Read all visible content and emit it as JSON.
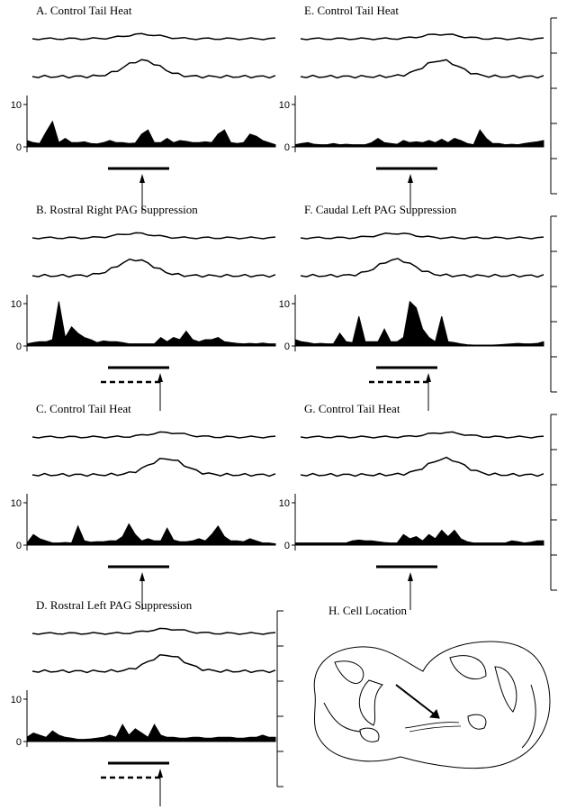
{
  "chart_data": [
    {
      "type": "area",
      "title": "A. Control Tail Heat",
      "color": "#000000",
      "ylim": [
        0,
        11.7
      ],
      "yticks": [
        0,
        10
      ],
      "values": [
        1.5,
        1,
        0.8,
        3.5,
        6,
        1,
        2,
        1,
        1,
        1.2,
        0.8,
        0.7,
        1,
        1.5,
        1,
        1,
        0.8,
        0.9,
        3,
        4,
        1,
        1,
        2,
        1,
        1.5,
        1.3,
        1,
        1,
        1.2,
        1,
        3,
        4,
        1,
        0.8,
        1,
        3,
        2.5,
        1.5,
        1,
        0.5
      ]
    },
    {
      "type": "area",
      "title": "B. Rostral Right PAG Suppression",
      "color": "#000000",
      "ylim": [
        0,
        11.7
      ],
      "yticks": [
        0,
        10
      ],
      "values": [
        0.5,
        0.8,
        1,
        1,
        1.5,
        10.5,
        2,
        4.5,
        3,
        2,
        1.5,
        0.8,
        1.2,
        1,
        1,
        0.8,
        0.5,
        0.5,
        0.5,
        0.5,
        0.5,
        2,
        1,
        2,
        1.5,
        3.5,
        1.5,
        1,
        1.5,
        1.5,
        2,
        1,
        0.8,
        0.6,
        0.5,
        0.6,
        0.5,
        0.7,
        0.5,
        0.5
      ]
    },
    {
      "type": "area",
      "title": "C. Control Tail Heat",
      "color": "#000000",
      "ylim": [
        0,
        11.7
      ],
      "yticks": [
        0,
        10
      ],
      "values": [
        0.5,
        2.5,
        1.5,
        1,
        0.5,
        0.5,
        0.6,
        0.5,
        4.5,
        1,
        0.7,
        0.8,
        0.8,
        1,
        1,
        2,
        5,
        2.5,
        1,
        1.5,
        1,
        1,
        4,
        1.2,
        0.8,
        0.8,
        1,
        1.5,
        1,
        2.5,
        4.5,
        2,
        1,
        1,
        0.8,
        1.5,
        1,
        0.5,
        0.5,
        0.3
      ]
    },
    {
      "type": "area",
      "title": "D. Rostral Left PAG Suppression",
      "color": "#000000",
      "ylim": [
        0,
        11.7
      ],
      "yticks": [
        0,
        10
      ],
      "values": [
        1,
        2,
        1.5,
        1,
        2.5,
        1.5,
        1,
        0.8,
        0.5,
        0.5,
        0.6,
        0.8,
        1,
        1.5,
        1,
        4,
        1.5,
        3,
        2,
        1,
        4,
        1.5,
        1,
        1,
        0.8,
        0.8,
        1,
        1,
        0.8,
        0.8,
        1,
        1,
        1,
        0.8,
        0.8,
        1,
        1,
        1.5,
        1,
        1
      ]
    },
    {
      "type": "area",
      "title": "E. Control Tail Heat",
      "color": "#000000",
      "ylim": [
        0,
        11.7
      ],
      "yticks": [
        0,
        10
      ],
      "values": [
        0.5,
        0.8,
        1,
        0.6,
        0.5,
        0.5,
        0.8,
        0.5,
        0.6,
        0.5,
        0.5,
        0.5,
        1,
        2,
        1,
        0.8,
        0.6,
        1.5,
        1,
        1.2,
        1,
        1.5,
        1,
        1.8,
        1,
        2,
        1.5,
        0.8,
        0.5,
        4,
        2,
        0.8,
        0.8,
        0.5,
        0.6,
        0.5,
        0.8,
        1,
        1.2,
        1.5
      ]
    },
    {
      "type": "area",
      "title": "F. Caudal Left PAG Suppression",
      "color": "#000000",
      "ylim": [
        0,
        11.7
      ],
      "yticks": [
        0,
        10
      ],
      "values": [
        1.5,
        1,
        0.8,
        0.5,
        0.6,
        0.5,
        0.5,
        3,
        1,
        0.8,
        7,
        1,
        1,
        1,
        4,
        1,
        1,
        2,
        10.5,
        9,
        4,
        2,
        1,
        7,
        1,
        0.8,
        0.5,
        0.3,
        0.2,
        0.2,
        0.2,
        0.2,
        0.3,
        0.4,
        0.5,
        0.6,
        0.5,
        0.5,
        0.6,
        1
      ]
    },
    {
      "type": "area",
      "title": "G. Control Tail Heat",
      "color": "#000000",
      "ylim": [
        0,
        11.7
      ],
      "yticks": [
        0,
        10
      ],
      "values": [
        0.5,
        0.5,
        0.5,
        0.5,
        0.5,
        0.5,
        0.5,
        0.5,
        0.5,
        1,
        1.2,
        1,
        1,
        0.8,
        0.6,
        0.5,
        0.5,
        2.5,
        1.5,
        2,
        1,
        2.5,
        1.5,
        3.5,
        2,
        3.5,
        1.5,
        0.8,
        0.5,
        0.5,
        0.5,
        0.5,
        0.5,
        0.5,
        1,
        0.8,
        0.5,
        0.7,
        1,
        1
      ]
    }
  ],
  "panel_h": {
    "title": "H. Cell Location"
  }
}
